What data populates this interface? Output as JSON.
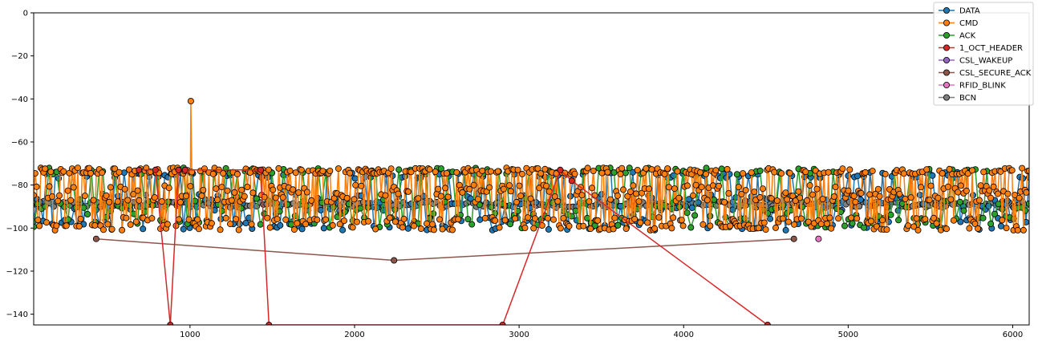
{
  "chart_data": {
    "type": "line",
    "title": "",
    "xlabel": "",
    "ylabel": "",
    "xlim": [
      50,
      6100
    ],
    "ylim": [
      -145,
      0
    ],
    "x_ticks": [
      1000,
      2000,
      3000,
      4000,
      5000,
      6000
    ],
    "y_ticks": [
      0,
      -20,
      -40,
      -60,
      -80,
      -100,
      -120,
      -140
    ],
    "grid": false,
    "legend_position": "top-right",
    "series": [
      {
        "name": "DATA",
        "color": "#1f77b4",
        "pattern": "dense_noise",
        "base": -88,
        "range": [
          -101,
          -74
        ],
        "x_range": [
          50,
          6100
        ],
        "count": 320
      },
      {
        "name": "CMD",
        "color": "#ff7f0e",
        "pattern": "dense_noise",
        "base": -84,
        "range": [
          -101,
          -72
        ],
        "x_range": [
          50,
          6100
        ],
        "count": 700,
        "spike": {
          "x": 1005,
          "y": -41
        }
      },
      {
        "name": "ACK",
        "color": "#2ca02c",
        "pattern": "dense_noise",
        "base": -90,
        "range": [
          -100,
          -72
        ],
        "x_range": [
          50,
          6100
        ],
        "count": 260
      },
      {
        "name": "1_OCT_HEADER",
        "color": "#d62728",
        "pattern": "points",
        "x": [
          690,
          790,
          880,
          930,
          970,
          1430,
          1480,
          2900,
          3250,
          3320,
          4510
        ],
        "y": [
          -73,
          -73,
          -145,
          -73,
          -73,
          -73,
          -145,
          -145,
          -73,
          -78,
          -145
        ]
      },
      {
        "name": "CSL_WAKEUP",
        "color": "#9467bd",
        "pattern": "points",
        "x": [],
        "y": []
      },
      {
        "name": "CSL_SECURE_ACK",
        "color": "#8c564b",
        "pattern": "points",
        "x": [
          430,
          2240,
          4670
        ],
        "y": [
          -105,
          -115,
          -105
        ]
      },
      {
        "name": "RFID_BLINK",
        "color": "#e377c2",
        "pattern": "points",
        "x": [
          4820
        ],
        "y": [
          -105
        ]
      },
      {
        "name": "BCN",
        "color": "#7f7f7f",
        "pattern": "flat",
        "base": -89,
        "range": [
          -95,
          -86
        ],
        "x_range": [
          50,
          6100
        ],
        "count": 300
      }
    ]
  }
}
